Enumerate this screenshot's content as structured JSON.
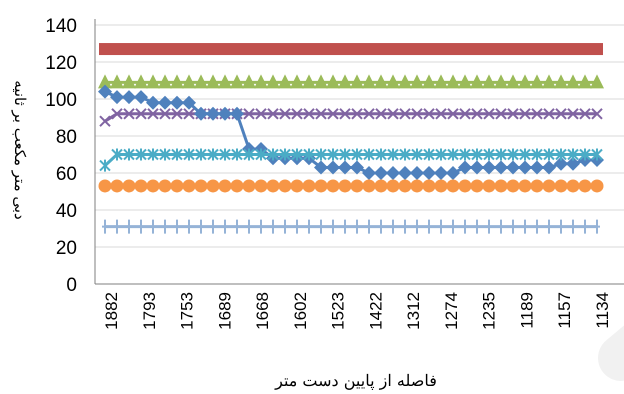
{
  "chart_data": {
    "type": "line",
    "title": "",
    "xlabel": "فاصله از پایین دست متر",
    "ylabel": "دبی متر مکعب بر ثانیه",
    "ylim": [
      0,
      140
    ],
    "yticks": [
      0,
      20,
      40,
      60,
      80,
      100,
      120,
      140
    ],
    "gridlines": "horizontal",
    "legend": "none",
    "xtick_labels": [
      "1882",
      "1793",
      "1753",
      "1689",
      "1668",
      "1602",
      "1523",
      "1422",
      "1312",
      "1274",
      "1235",
      "1189",
      "1157",
      "1134"
    ],
    "series": [
      {
        "color": "#c0504d",
        "marker": "square",
        "values": [
          127,
          127,
          127,
          127,
          127,
          127,
          127,
          127,
          127,
          127,
          127,
          127,
          127,
          127,
          127,
          127,
          127,
          127,
          127,
          127,
          127,
          127,
          127,
          127,
          127,
          127,
          127,
          127,
          127,
          127,
          127,
          127,
          127,
          127,
          127,
          127,
          127,
          127,
          127,
          127,
          127,
          127
        ]
      },
      {
        "color": "#9bbb59",
        "marker": "triangle",
        "values": [
          109,
          109,
          109,
          109,
          109,
          109,
          109,
          109,
          109,
          109,
          109,
          109,
          109,
          109,
          109,
          109,
          109,
          109,
          109,
          109,
          109,
          109,
          109,
          109,
          109,
          109,
          109,
          109,
          109,
          109,
          109,
          109,
          109,
          109,
          109,
          109,
          109,
          109,
          109,
          109,
          109,
          109
        ]
      },
      {
        "color": "#8064a2",
        "marker": "x",
        "values": [
          88,
          92,
          92,
          92,
          92,
          92,
          92,
          92,
          92,
          92,
          92,
          92,
          92,
          92,
          92,
          92,
          92,
          92,
          92,
          92,
          92,
          92,
          92,
          92,
          92,
          92,
          92,
          92,
          92,
          92,
          92,
          92,
          92,
          92,
          92,
          92,
          92,
          92,
          92,
          92,
          92,
          92
        ]
      },
      {
        "color": "#4f81bd",
        "marker": "diamond",
        "values": [
          104,
          101,
          101,
          101,
          98,
          98,
          98,
          98,
          92,
          92,
          92,
          92,
          73,
          73,
          68,
          68,
          68,
          68,
          63,
          63,
          63,
          63,
          60,
          60,
          60,
          60,
          60,
          60,
          60,
          60,
          63,
          63,
          63,
          63,
          63,
          63,
          63,
          63,
          65,
          65,
          67,
          67
        ]
      },
      {
        "color": "#4bacc6",
        "marker": "star",
        "values": [
          64,
          70,
          70,
          70,
          70,
          70,
          70,
          70,
          70,
          70,
          70,
          70,
          70,
          70,
          70,
          70,
          70,
          70,
          70,
          70,
          70,
          70,
          70,
          70,
          70,
          70,
          70,
          70,
          70,
          70,
          70,
          70,
          70,
          70,
          70,
          70,
          70,
          70,
          70,
          70,
          70,
          70
        ]
      },
      {
        "color": "#f79646",
        "marker": "circle",
        "values": [
          53,
          53,
          53,
          53,
          53,
          53,
          53,
          53,
          53,
          53,
          53,
          53,
          53,
          53,
          53,
          53,
          53,
          53,
          53,
          53,
          53,
          53,
          53,
          53,
          53,
          53,
          53,
          53,
          53,
          53,
          53,
          53,
          53,
          53,
          53,
          53,
          53,
          53,
          53,
          53,
          53,
          53
        ]
      },
      {
        "color": "#95b3d7",
        "marker": "plus",
        "values": [
          31,
          31,
          31,
          31,
          31,
          31,
          31,
          31,
          31,
          31,
          31,
          31,
          31,
          31,
          31,
          31,
          31,
          31,
          31,
          31,
          31,
          31,
          31,
          31,
          31,
          31,
          31,
          31,
          31,
          31,
          31,
          31,
          31,
          31,
          31,
          31,
          31,
          31,
          31,
          31,
          31,
          31
        ]
      }
    ]
  }
}
